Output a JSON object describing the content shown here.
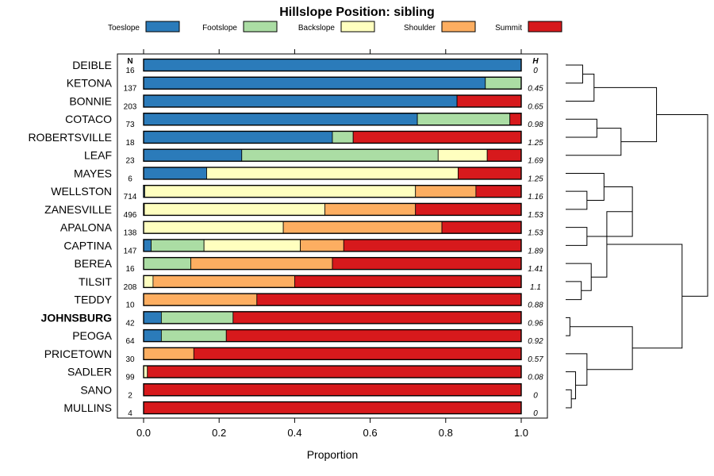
{
  "chart_data": {
    "type": "bar",
    "orientation": "horizontal",
    "stacked": true,
    "title": "Hillslope Position: sibling",
    "xlabel": "Proportion",
    "ylabel": "",
    "xlim": [
      0,
      1
    ],
    "x_ticks": [
      "0.0",
      "0.2",
      "0.4",
      "0.6",
      "0.8",
      "1.0"
    ],
    "count_header": "N",
    "h_header": "H",
    "legend_position": "top",
    "highlighted": "JOHNSBURG",
    "categories": [
      "Toeslope",
      "Footslope",
      "Backslope",
      "Shoulder",
      "Summit"
    ],
    "colors": [
      "#2b7bba",
      "#abdda4",
      "#ffffbf",
      "#fdae61",
      "#d7191c"
    ],
    "rows": [
      {
        "name": "DEIBLE",
        "n": "16",
        "h": "0",
        "values": [
          1.0,
          0,
          0,
          0,
          0
        ]
      },
      {
        "name": "KETONA",
        "n": "137",
        "h": "0.45",
        "values": [
          0.905,
          0.095,
          0,
          0,
          0
        ]
      },
      {
        "name": "BONNIE",
        "n": "203",
        "h": "0.65",
        "values": [
          0.83,
          0,
          0,
          0,
          0.17
        ]
      },
      {
        "name": "COTACO",
        "n": "73",
        "h": "0.98",
        "values": [
          0.725,
          0.245,
          0,
          0,
          0.03
        ]
      },
      {
        "name": "ROBERTSVILLE",
        "n": "18",
        "h": "1.25",
        "values": [
          0.5,
          0.055,
          0,
          0,
          0.445
        ]
      },
      {
        "name": "LEAF",
        "n": "23",
        "h": "1.69",
        "values": [
          0.26,
          0.52,
          0.13,
          0,
          0.09
        ]
      },
      {
        "name": "MAYES",
        "n": "6",
        "h": "1.25",
        "values": [
          0.167,
          0,
          0.666,
          0,
          0.167
        ]
      },
      {
        "name": "WELLSTON",
        "n": "714",
        "h": "1.16",
        "values": [
          0.003,
          0,
          0.717,
          0.16,
          0.12
        ]
      },
      {
        "name": "ZANESVILLE",
        "n": "496",
        "h": "1.53",
        "values": [
          0.002,
          0,
          0.478,
          0.24,
          0.28
        ]
      },
      {
        "name": "APALONA",
        "n": "138",
        "h": "1.53",
        "values": [
          0,
          0,
          0.37,
          0.42,
          0.21
        ]
      },
      {
        "name": "CAPTINA",
        "n": "147",
        "h": "1.89",
        "values": [
          0.02,
          0.14,
          0.255,
          0.115,
          0.47
        ]
      },
      {
        "name": "BEREA",
        "n": "16",
        "h": "1.41",
        "values": [
          0,
          0.125,
          0,
          0.375,
          0.5
        ]
      },
      {
        "name": "TILSIT",
        "n": "208",
        "h": "1.1",
        "values": [
          0,
          0,
          0.025,
          0.375,
          0.6
        ]
      },
      {
        "name": "TEDDY",
        "n": "10",
        "h": "0.88",
        "values": [
          0,
          0,
          0,
          0.3,
          0.7
        ]
      },
      {
        "name": "JOHNSBURG",
        "n": "42",
        "h": "0.96",
        "values": [
          0.047,
          0.19,
          0,
          0,
          0.763
        ]
      },
      {
        "name": "PEOGA",
        "n": "64",
        "h": "0.92",
        "values": [
          0.047,
          0.172,
          0,
          0,
          0.781
        ]
      },
      {
        "name": "PRICETOWN",
        "n": "30",
        "h": "0.57",
        "values": [
          0,
          0,
          0,
          0.133,
          0.867
        ]
      },
      {
        "name": "SADLER",
        "n": "99",
        "h": "0.08",
        "values": [
          0,
          0,
          0.01,
          0,
          0.99
        ]
      },
      {
        "name": "SANO",
        "n": "2",
        "h": "0",
        "values": [
          0,
          0,
          0,
          0,
          1.0
        ]
      },
      {
        "name": "MULLINS",
        "n": "4",
        "h": "0",
        "values": [
          0,
          0,
          0,
          0,
          1.0
        ]
      }
    ],
    "dendrogram": {
      "note": "merge order and relative merge heights (0-1)",
      "merges": [
        {
          "a": 0,
          "b": 1,
          "height": 0.12
        },
        {
          "a": "c0",
          "b": 2,
          "height": 0.2
        },
        {
          "a": 3,
          "b": 4,
          "height": 0.22
        },
        {
          "a": "c2",
          "b": 5,
          "height": 0.39
        },
        {
          "a": "c1",
          "b": "c3",
          "height": 0.64
        },
        {
          "a": 7,
          "b": 8,
          "height": 0.15
        },
        {
          "a": 6,
          "b": "c5",
          "height": 0.27
        },
        {
          "a": 9,
          "b": 10,
          "height": 0.15
        },
        {
          "a": "c6",
          "b": "c7",
          "height": 0.47
        },
        {
          "a": 12,
          "b": 13,
          "height": 0.11
        },
        {
          "a": 11,
          "b": "c9",
          "height": 0.18
        },
        {
          "a": "c10",
          "b": "c8",
          "height": 0.29
        },
        {
          "a": 14,
          "b": 15,
          "height": 0.03
        },
        {
          "a": 18,
          "b": 19,
          "height": 0.04
        },
        {
          "a": 17,
          "b": "c13",
          "height": 0.07
        },
        {
          "a": 16,
          "b": "c14",
          "height": 0.15
        },
        {
          "a": "c12",
          "b": "c15",
          "height": 0.47
        },
        {
          "a": "c11",
          "b": "c16",
          "height": 0.82
        },
        {
          "a": "c4",
          "b": "c17",
          "height": 1.0
        }
      ]
    }
  }
}
